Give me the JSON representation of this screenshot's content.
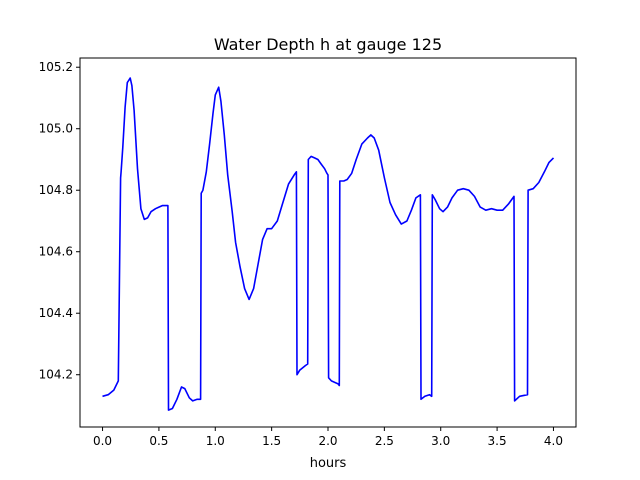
{
  "chart_data": {
    "type": "line",
    "title": "Water Depth h at gauge 125",
    "xlabel": "hours",
    "ylabel": "",
    "xlim": [
      -0.2,
      4.2
    ],
    "ylim": [
      104.03,
      105.23
    ],
    "xticks": [
      0.0,
      0.5,
      1.0,
      1.5,
      2.0,
      2.5,
      3.0,
      3.5,
      4.0
    ],
    "xtick_labels": [
      "0.0",
      "0.5",
      "1.0",
      "1.5",
      "2.0",
      "2.5",
      "3.0",
      "3.5",
      "4.0"
    ],
    "yticks": [
      104.2,
      104.4,
      104.6,
      104.8,
      105.0,
      105.2
    ],
    "ytick_labels": [
      "104.2",
      "104.4",
      "104.6",
      "104.8",
      "105.0",
      "105.2"
    ],
    "grid": false,
    "legend": "none",
    "color": "#0000ff",
    "series": [
      {
        "x": [
          0.0,
          0.05,
          0.1,
          0.14,
          0.16,
          0.165,
          0.18,
          0.2,
          0.22,
          0.245,
          0.26,
          0.28,
          0.31,
          0.34,
          0.37,
          0.4,
          0.43,
          0.47,
          0.5,
          0.53,
          0.57,
          0.58,
          0.585,
          0.62,
          0.66,
          0.7,
          0.73,
          0.77,
          0.8,
          0.84,
          0.87,
          0.875,
          0.89,
          0.92,
          0.95,
          0.98,
          1.0,
          1.03,
          1.05,
          1.08,
          1.11,
          1.15,
          1.18,
          1.22,
          1.26,
          1.3,
          1.34,
          1.38,
          1.42,
          1.46,
          1.5,
          1.55,
          1.6,
          1.65,
          1.7,
          1.72,
          1.725,
          1.75,
          1.8,
          1.82,
          1.825,
          1.85,
          1.88,
          1.91,
          1.94,
          1.97,
          1.99,
          2.0,
          2.005,
          2.03,
          2.09,
          2.1,
          2.105,
          2.14,
          2.17,
          2.21,
          2.25,
          2.3,
          2.35,
          2.38,
          2.41,
          2.45,
          2.5,
          2.55,
          2.6,
          2.65,
          2.7,
          2.74,
          2.78,
          2.82,
          2.825,
          2.86,
          2.9,
          2.92,
          2.925,
          2.95,
          2.99,
          3.02,
          3.06,
          3.1,
          3.15,
          3.2,
          3.25,
          3.3,
          3.35,
          3.4,
          3.45,
          3.5,
          3.55,
          3.6,
          3.65,
          3.655,
          3.7,
          3.77,
          3.775,
          3.82,
          3.87,
          3.92,
          3.96,
          4.0
        ],
        "y": [
          104.13,
          104.135,
          104.15,
          104.18,
          104.84,
          104.86,
          104.94,
          105.07,
          105.15,
          105.165,
          105.14,
          105.06,
          104.87,
          104.74,
          104.705,
          104.71,
          104.73,
          104.74,
          104.745,
          104.75,
          104.75,
          104.75,
          104.085,
          104.09,
          104.12,
          104.16,
          104.155,
          104.125,
          104.115,
          104.12,
          104.12,
          104.79,
          104.8,
          104.86,
          104.95,
          105.05,
          105.11,
          105.135,
          105.09,
          104.98,
          104.85,
          104.73,
          104.63,
          104.55,
          104.48,
          104.445,
          104.48,
          104.56,
          104.64,
          104.675,
          104.675,
          104.7,
          104.76,
          104.82,
          104.85,
          104.86,
          104.2,
          104.215,
          104.23,
          104.235,
          104.9,
          104.91,
          104.905,
          104.9,
          104.885,
          104.87,
          104.855,
          104.85,
          104.19,
          104.18,
          104.17,
          104.165,
          104.83,
          104.83,
          104.835,
          104.855,
          104.9,
          104.95,
          104.97,
          104.98,
          104.97,
          104.93,
          104.84,
          104.76,
          104.72,
          104.69,
          104.7,
          104.735,
          104.775,
          104.785,
          104.12,
          104.13,
          104.135,
          104.13,
          104.785,
          104.77,
          104.74,
          104.73,
          104.745,
          104.775,
          104.8,
          104.805,
          104.8,
          104.78,
          104.745,
          104.735,
          104.74,
          104.735,
          104.735,
          104.755,
          104.78,
          104.115,
          104.13,
          104.135,
          104.8,
          104.805,
          104.825,
          104.86,
          104.89,
          104.905
        ]
      }
    ]
  }
}
